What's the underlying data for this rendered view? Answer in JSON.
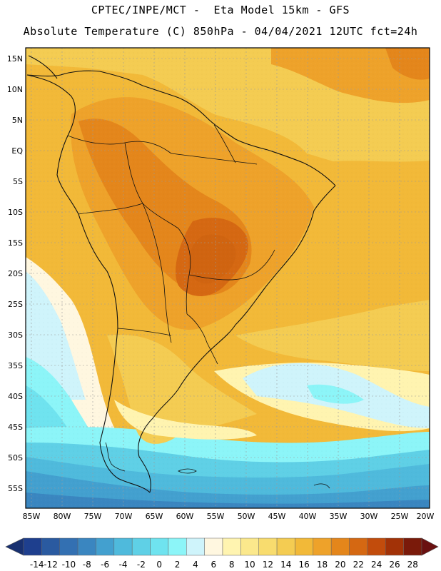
{
  "title": {
    "line1": "CPTEC/INPE/MCT -  Eta Model 15km - GFS",
    "line2": "Absolute Temperature (C) 850hPa - 04/04/2021 12UTC fct=24h"
  },
  "map": {
    "lon_labels": [
      "85W",
      "80W",
      "75W",
      "70W",
      "65W",
      "60W",
      "55W",
      "50W",
      "45W",
      "40W",
      "35W",
      "30W",
      "25W",
      "20W"
    ],
    "lat_labels": [
      "15N",
      "10N",
      "5N",
      "EQ",
      "5S",
      "10S",
      "15S",
      "20S",
      "25S",
      "30S",
      "35S",
      "40S",
      "45S",
      "50S",
      "55S"
    ]
  },
  "colorbar": {
    "labels": [
      "-14",
      "-12",
      "-10",
      "-8",
      "-6",
      "-4",
      "-2",
      "0",
      "2",
      "4",
      "6",
      "8",
      "10",
      "12",
      "14",
      "16",
      "18",
      "20",
      "22",
      "24",
      "26",
      "28"
    ],
    "colors": [
      "#1e3f8e",
      "#2a5aa0",
      "#3370b2",
      "#3a86c0",
      "#43a0cf",
      "#4fbadc",
      "#5fd0e6",
      "#6fe3ef",
      "#8cf5f8",
      "#cff4fb",
      "#fff7e0",
      "#fff4b0",
      "#fbe88c",
      "#f8dc6e",
      "#f4cc52",
      "#f2b938",
      "#eea22a",
      "#e4861b",
      "#d56812",
      "#c24c0c",
      "#a23207",
      "#7a1a0a"
    ],
    "left_arrow_color": "#183070",
    "right_arrow_color": "#6a1010"
  }
}
